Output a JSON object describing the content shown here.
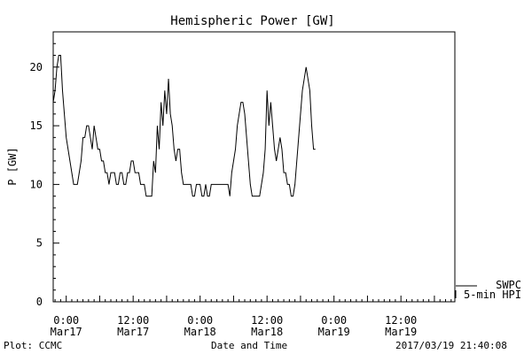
{
  "chart_data": {
    "type": "line",
    "title": "Hemispheric Power [GW]",
    "ylabel": "P [GW]",
    "xlabel": "Date and Time",
    "ylim": [
      0,
      23
    ],
    "xlim": [
      "2017-03-16 21:40",
      "2017-03-19 21:40"
    ],
    "y_ticks": [
      0,
      5,
      10,
      15,
      20
    ],
    "x_ticks": [
      {
        "at": "2017-03-17 00:00",
        "time": "0:00",
        "date": "Mar17"
      },
      {
        "at": "2017-03-17 12:00",
        "time": "12:00",
        "date": "Mar17"
      },
      {
        "at": "2017-03-18 00:00",
        "time": "0:00",
        "date": "Mar18"
      },
      {
        "at": "2017-03-18 12:00",
        "time": "12:00",
        "date": "Mar18"
      },
      {
        "at": "2017-03-19 00:00",
        "time": "0:00",
        "date": "Mar19"
      },
      {
        "at": "2017-03-19 12:00",
        "time": "12:00",
        "date": "Mar19"
      }
    ],
    "legend": {
      "placement": "bottom-right",
      "entries": [
        "SWPC",
        "5-min HPI"
      ]
    },
    "color": "#000000",
    "series": [
      {
        "name": "SWPC",
        "points": [
          [
            "2017-03-16 21:40",
            17
          ],
          [
            "2017-03-16 22:00",
            18
          ],
          [
            "2017-03-16 22:20",
            20
          ],
          [
            "2017-03-16 22:40",
            21
          ],
          [
            "2017-03-16 23:00",
            21
          ],
          [
            "2017-03-16 23:20",
            18
          ],
          [
            "2017-03-16 23:40",
            16
          ],
          [
            "2017-03-17 00:00",
            14
          ],
          [
            "2017-03-17 00:20",
            13
          ],
          [
            "2017-03-17 00:40",
            12
          ],
          [
            "2017-03-17 01:00",
            11
          ],
          [
            "2017-03-17 01:20",
            10
          ],
          [
            "2017-03-17 01:40",
            10
          ],
          [
            "2017-03-17 02:00",
            10
          ],
          [
            "2017-03-17 02:20",
            11
          ],
          [
            "2017-03-17 02:40",
            12
          ],
          [
            "2017-03-17 03:00",
            14
          ],
          [
            "2017-03-17 03:20",
            14
          ],
          [
            "2017-03-17 03:40",
            15
          ],
          [
            "2017-03-17 04:00",
            15
          ],
          [
            "2017-03-17 04:20",
            14
          ],
          [
            "2017-03-17 04:40",
            13
          ],
          [
            "2017-03-17 05:00",
            15
          ],
          [
            "2017-03-17 05:20",
            14
          ],
          [
            "2017-03-17 05:40",
            13
          ],
          [
            "2017-03-17 06:00",
            13
          ],
          [
            "2017-03-17 06:20",
            12
          ],
          [
            "2017-03-17 06:40",
            12
          ],
          [
            "2017-03-17 07:00",
            11
          ],
          [
            "2017-03-17 07:20",
            11
          ],
          [
            "2017-03-17 07:40",
            10
          ],
          [
            "2017-03-17 08:00",
            11
          ],
          [
            "2017-03-17 08:20",
            11
          ],
          [
            "2017-03-17 08:40",
            11
          ],
          [
            "2017-03-17 09:00",
            10
          ],
          [
            "2017-03-17 09:20",
            10
          ],
          [
            "2017-03-17 09:40",
            11
          ],
          [
            "2017-03-17 10:00",
            11
          ],
          [
            "2017-03-17 10:20",
            10
          ],
          [
            "2017-03-17 10:40",
            10
          ],
          [
            "2017-03-17 11:00",
            11
          ],
          [
            "2017-03-17 11:20",
            11
          ],
          [
            "2017-03-17 11:40",
            12
          ],
          [
            "2017-03-17 12:00",
            12
          ],
          [
            "2017-03-17 12:20",
            11
          ],
          [
            "2017-03-17 12:40",
            11
          ],
          [
            "2017-03-17 13:00",
            11
          ],
          [
            "2017-03-17 13:20",
            10
          ],
          [
            "2017-03-17 13:40",
            10
          ],
          [
            "2017-03-17 14:00",
            10
          ],
          [
            "2017-03-17 14:20",
            9
          ],
          [
            "2017-03-17 14:40",
            9
          ],
          [
            "2017-03-17 15:00",
            9
          ],
          [
            "2017-03-17 15:20",
            9
          ],
          [
            "2017-03-17 15:40",
            12
          ],
          [
            "2017-03-17 16:00",
            11
          ],
          [
            "2017-03-17 16:20",
            15
          ],
          [
            "2017-03-17 16:40",
            13
          ],
          [
            "2017-03-17 17:00",
            17
          ],
          [
            "2017-03-17 17:20",
            15
          ],
          [
            "2017-03-17 17:40",
            18
          ],
          [
            "2017-03-17 18:00",
            16
          ],
          [
            "2017-03-17 18:20",
            19
          ],
          [
            "2017-03-17 18:40",
            16
          ],
          [
            "2017-03-17 19:00",
            15
          ],
          [
            "2017-03-17 19:20",
            13
          ],
          [
            "2017-03-17 19:40",
            12
          ],
          [
            "2017-03-17 20:00",
            13
          ],
          [
            "2017-03-17 20:20",
            13
          ],
          [
            "2017-03-17 20:40",
            11
          ],
          [
            "2017-03-17 21:00",
            10
          ],
          [
            "2017-03-17 21:20",
            10
          ],
          [
            "2017-03-17 21:40",
            10
          ],
          [
            "2017-03-17 22:00",
            10
          ],
          [
            "2017-03-17 22:20",
            10
          ],
          [
            "2017-03-17 22:40",
            9
          ],
          [
            "2017-03-17 23:00",
            9
          ],
          [
            "2017-03-17 23:20",
            10
          ],
          [
            "2017-03-17 23:40",
            10
          ],
          [
            "2017-03-18 00:00",
            10
          ],
          [
            "2017-03-18 00:20",
            9
          ],
          [
            "2017-03-18 00:40",
            9
          ],
          [
            "2017-03-18 01:00",
            10
          ],
          [
            "2017-03-18 01:20",
            9
          ],
          [
            "2017-03-18 01:40",
            9
          ],
          [
            "2017-03-18 02:00",
            10
          ],
          [
            "2017-03-18 02:20",
            10
          ],
          [
            "2017-03-18 02:40",
            10
          ],
          [
            "2017-03-18 03:00",
            10
          ],
          [
            "2017-03-18 03:20",
            10
          ],
          [
            "2017-03-18 03:40",
            10
          ],
          [
            "2017-03-18 04:00",
            10
          ],
          [
            "2017-03-18 04:20",
            10
          ],
          [
            "2017-03-18 04:40",
            10
          ],
          [
            "2017-03-18 05:00",
            10
          ],
          [
            "2017-03-18 05:20",
            9
          ],
          [
            "2017-03-18 05:40",
            11
          ],
          [
            "2017-03-18 06:00",
            12
          ],
          [
            "2017-03-18 06:20",
            13
          ],
          [
            "2017-03-18 06:40",
            15
          ],
          [
            "2017-03-18 07:00",
            16
          ],
          [
            "2017-03-18 07:20",
            17
          ],
          [
            "2017-03-18 07:40",
            17
          ],
          [
            "2017-03-18 08:00",
            16
          ],
          [
            "2017-03-18 08:20",
            14
          ],
          [
            "2017-03-18 08:40",
            12
          ],
          [
            "2017-03-18 09:00",
            10
          ],
          [
            "2017-03-18 09:20",
            9
          ],
          [
            "2017-03-18 09:40",
            9
          ],
          [
            "2017-03-18 10:00",
            9
          ],
          [
            "2017-03-18 10:20",
            9
          ],
          [
            "2017-03-18 10:40",
            9
          ],
          [
            "2017-03-18 11:00",
            10
          ],
          [
            "2017-03-18 11:20",
            11
          ],
          [
            "2017-03-18 11:40",
            13
          ],
          [
            "2017-03-18 12:00",
            18
          ],
          [
            "2017-03-18 12:20",
            15
          ],
          [
            "2017-03-18 12:40",
            17
          ],
          [
            "2017-03-18 13:00",
            15
          ],
          [
            "2017-03-18 13:20",
            13
          ],
          [
            "2017-03-18 13:40",
            12
          ],
          [
            "2017-03-18 14:00",
            13
          ],
          [
            "2017-03-18 14:20",
            14
          ],
          [
            "2017-03-18 14:40",
            13
          ],
          [
            "2017-03-18 15:00",
            11
          ],
          [
            "2017-03-18 15:20",
            11
          ],
          [
            "2017-03-18 15:40",
            10
          ],
          [
            "2017-03-18 16:00",
            10
          ],
          [
            "2017-03-18 16:20",
            9
          ],
          [
            "2017-03-18 16:40",
            9
          ],
          [
            "2017-03-18 17:00",
            10
          ],
          [
            "2017-03-18 17:20",
            12
          ],
          [
            "2017-03-18 17:40",
            14
          ],
          [
            "2017-03-18 18:00",
            16
          ],
          [
            "2017-03-18 18:20",
            18
          ],
          [
            "2017-03-18 18:40",
            19
          ],
          [
            "2017-03-18 19:00",
            20
          ],
          [
            "2017-03-18 19:20",
            19
          ],
          [
            "2017-03-18 19:40",
            18
          ],
          [
            "2017-03-18 20:00",
            15
          ],
          [
            "2017-03-18 20:20",
            13
          ],
          [
            "2017-03-18 20:40",
            13
          ]
        ]
      }
    ]
  },
  "footer": {
    "left": "Plot: CCMC",
    "center": "Date and Time",
    "right": "2017/03/19 21:40:08"
  }
}
